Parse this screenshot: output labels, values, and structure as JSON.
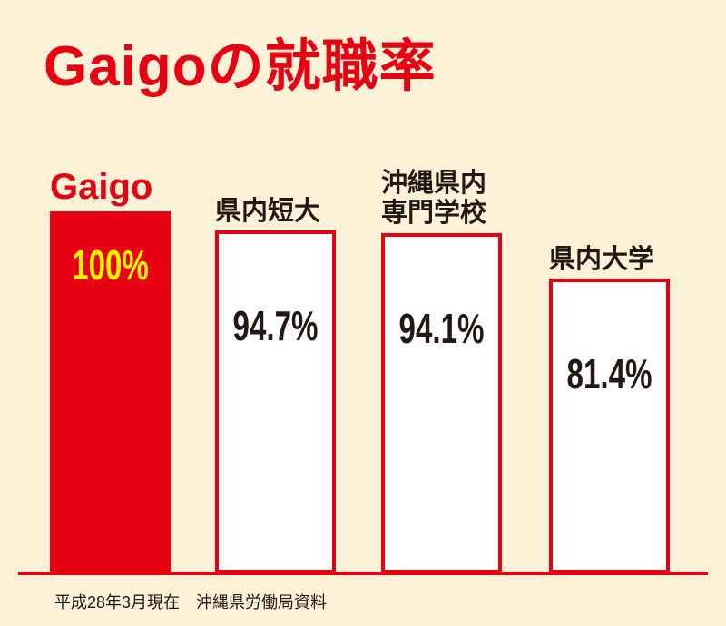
{
  "chart_data": {
    "type": "bar",
    "title": "Gaigoの就職率",
    "categories": [
      "Gaigo",
      "県内短大",
      "沖縄県内\n専門学校",
      "県内大学"
    ],
    "values": [
      100,
      94.7,
      94.1,
      81.4
    ],
    "value_labels": [
      "100%",
      "94.7%",
      "94.1%",
      "81.4%"
    ],
    "colors": [
      "#e60012",
      "#ffffff",
      "#ffffff",
      "#ffffff"
    ],
    "value_label_colors": [
      "#fff100",
      "#231815",
      "#231815",
      "#231815"
    ],
    "category_label_colors": [
      "#e60012",
      "#231815",
      "#231815",
      "#231815"
    ],
    "edge_color": "#e60012",
    "note": "平成28年3月現在　沖縄県労働局資料"
  }
}
